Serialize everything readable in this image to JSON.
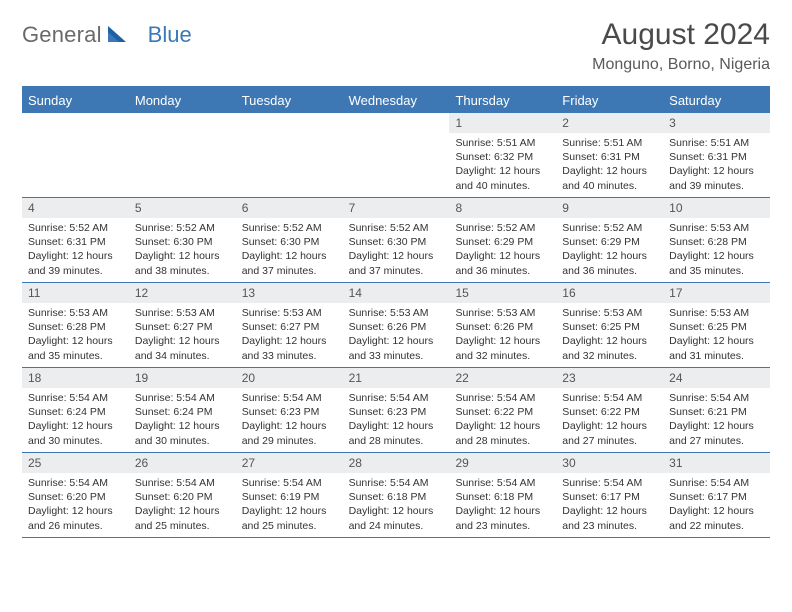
{
  "brand": {
    "name1": "General",
    "name2": "Blue"
  },
  "title": "August 2024",
  "location": "Monguno, Borno, Nigeria",
  "colors": {
    "accent": "#3d78b5",
    "header_bg": "#3d78b5",
    "header_text": "#ffffff",
    "daynum_bg": "#ecedee",
    "logo_gray": "#6a6a6a",
    "logo_blue": "#3b78b8"
  },
  "day_headers": [
    "Sunday",
    "Monday",
    "Tuesday",
    "Wednesday",
    "Thursday",
    "Friday",
    "Saturday"
  ],
  "weeks": [
    [
      {
        "n": "",
        "lines": []
      },
      {
        "n": "",
        "lines": []
      },
      {
        "n": "",
        "lines": []
      },
      {
        "n": "",
        "lines": []
      },
      {
        "n": "1",
        "lines": [
          "Sunrise: 5:51 AM",
          "Sunset: 6:32 PM",
          "Daylight: 12 hours and 40 minutes."
        ]
      },
      {
        "n": "2",
        "lines": [
          "Sunrise: 5:51 AM",
          "Sunset: 6:31 PM",
          "Daylight: 12 hours and 40 minutes."
        ]
      },
      {
        "n": "3",
        "lines": [
          "Sunrise: 5:51 AM",
          "Sunset: 6:31 PM",
          "Daylight: 12 hours and 39 minutes."
        ]
      }
    ],
    [
      {
        "n": "4",
        "lines": [
          "Sunrise: 5:52 AM",
          "Sunset: 6:31 PM",
          "Daylight: 12 hours and 39 minutes."
        ]
      },
      {
        "n": "5",
        "lines": [
          "Sunrise: 5:52 AM",
          "Sunset: 6:30 PM",
          "Daylight: 12 hours and 38 minutes."
        ]
      },
      {
        "n": "6",
        "lines": [
          "Sunrise: 5:52 AM",
          "Sunset: 6:30 PM",
          "Daylight: 12 hours and 37 minutes."
        ]
      },
      {
        "n": "7",
        "lines": [
          "Sunrise: 5:52 AM",
          "Sunset: 6:30 PM",
          "Daylight: 12 hours and 37 minutes."
        ]
      },
      {
        "n": "8",
        "lines": [
          "Sunrise: 5:52 AM",
          "Sunset: 6:29 PM",
          "Daylight: 12 hours and 36 minutes."
        ]
      },
      {
        "n": "9",
        "lines": [
          "Sunrise: 5:52 AM",
          "Sunset: 6:29 PM",
          "Daylight: 12 hours and 36 minutes."
        ]
      },
      {
        "n": "10",
        "lines": [
          "Sunrise: 5:53 AM",
          "Sunset: 6:28 PM",
          "Daylight: 12 hours and 35 minutes."
        ]
      }
    ],
    [
      {
        "n": "11",
        "lines": [
          "Sunrise: 5:53 AM",
          "Sunset: 6:28 PM",
          "Daylight: 12 hours and 35 minutes."
        ]
      },
      {
        "n": "12",
        "lines": [
          "Sunrise: 5:53 AM",
          "Sunset: 6:27 PM",
          "Daylight: 12 hours and 34 minutes."
        ]
      },
      {
        "n": "13",
        "lines": [
          "Sunrise: 5:53 AM",
          "Sunset: 6:27 PM",
          "Daylight: 12 hours and 33 minutes."
        ]
      },
      {
        "n": "14",
        "lines": [
          "Sunrise: 5:53 AM",
          "Sunset: 6:26 PM",
          "Daylight: 12 hours and 33 minutes."
        ]
      },
      {
        "n": "15",
        "lines": [
          "Sunrise: 5:53 AM",
          "Sunset: 6:26 PM",
          "Daylight: 12 hours and 32 minutes."
        ]
      },
      {
        "n": "16",
        "lines": [
          "Sunrise: 5:53 AM",
          "Sunset: 6:25 PM",
          "Daylight: 12 hours and 32 minutes."
        ]
      },
      {
        "n": "17",
        "lines": [
          "Sunrise: 5:53 AM",
          "Sunset: 6:25 PM",
          "Daylight: 12 hours and 31 minutes."
        ]
      }
    ],
    [
      {
        "n": "18",
        "lines": [
          "Sunrise: 5:54 AM",
          "Sunset: 6:24 PM",
          "Daylight: 12 hours and 30 minutes."
        ]
      },
      {
        "n": "19",
        "lines": [
          "Sunrise: 5:54 AM",
          "Sunset: 6:24 PM",
          "Daylight: 12 hours and 30 minutes."
        ]
      },
      {
        "n": "20",
        "lines": [
          "Sunrise: 5:54 AM",
          "Sunset: 6:23 PM",
          "Daylight: 12 hours and 29 minutes."
        ]
      },
      {
        "n": "21",
        "lines": [
          "Sunrise: 5:54 AM",
          "Sunset: 6:23 PM",
          "Daylight: 12 hours and 28 minutes."
        ]
      },
      {
        "n": "22",
        "lines": [
          "Sunrise: 5:54 AM",
          "Sunset: 6:22 PM",
          "Daylight: 12 hours and 28 minutes."
        ]
      },
      {
        "n": "23",
        "lines": [
          "Sunrise: 5:54 AM",
          "Sunset: 6:22 PM",
          "Daylight: 12 hours and 27 minutes."
        ]
      },
      {
        "n": "24",
        "lines": [
          "Sunrise: 5:54 AM",
          "Sunset: 6:21 PM",
          "Daylight: 12 hours and 27 minutes."
        ]
      }
    ],
    [
      {
        "n": "25",
        "lines": [
          "Sunrise: 5:54 AM",
          "Sunset: 6:20 PM",
          "Daylight: 12 hours and 26 minutes."
        ]
      },
      {
        "n": "26",
        "lines": [
          "Sunrise: 5:54 AM",
          "Sunset: 6:20 PM",
          "Daylight: 12 hours and 25 minutes."
        ]
      },
      {
        "n": "27",
        "lines": [
          "Sunrise: 5:54 AM",
          "Sunset: 6:19 PM",
          "Daylight: 12 hours and 25 minutes."
        ]
      },
      {
        "n": "28",
        "lines": [
          "Sunrise: 5:54 AM",
          "Sunset: 6:18 PM",
          "Daylight: 12 hours and 24 minutes."
        ]
      },
      {
        "n": "29",
        "lines": [
          "Sunrise: 5:54 AM",
          "Sunset: 6:18 PM",
          "Daylight: 12 hours and 23 minutes."
        ]
      },
      {
        "n": "30",
        "lines": [
          "Sunrise: 5:54 AM",
          "Sunset: 6:17 PM",
          "Daylight: 12 hours and 23 minutes."
        ]
      },
      {
        "n": "31",
        "lines": [
          "Sunrise: 5:54 AM",
          "Sunset: 6:17 PM",
          "Daylight: 12 hours and 22 minutes."
        ]
      }
    ]
  ]
}
